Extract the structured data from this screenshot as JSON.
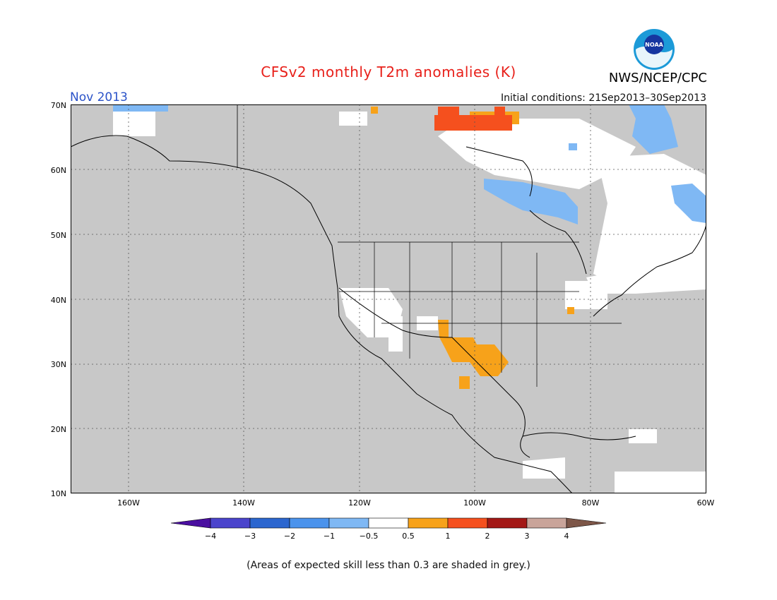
{
  "header": {
    "title": "CFSv2 monthly T2m anomalies (K)",
    "month": "Nov 2013",
    "initial_conditions": "Initial conditions: 21Sep2013–30Sep2013",
    "organization": "NWS/NCEP/CPC",
    "logo_text": "NOAA"
  },
  "map": {
    "lat_labels": [
      "70N",
      "60N",
      "50N",
      "40N",
      "30N",
      "20N",
      "10N"
    ],
    "lon_labels": [
      "160W",
      "140W",
      "120W",
      "100W",
      "80W",
      "60W"
    ],
    "background_color": "#c8c8c8"
  },
  "legend": {
    "tick_labels": [
      "−4",
      "−3",
      "−2",
      "−1",
      "−0.5",
      "0.5",
      "1",
      "2",
      "3",
      "4"
    ],
    "colors": [
      "#4a0fa0",
      "#4b44cc",
      "#2b66cf",
      "#4b93ec",
      "#7fb8f4",
      "#ffffff",
      "#f7a21a",
      "#f5501e",
      "#a31816",
      "#c9a49a",
      "#7d5648"
    ]
  },
  "footer": {
    "note": "(Areas of expected skill less than 0.3 are shaded in grey.)"
  }
}
